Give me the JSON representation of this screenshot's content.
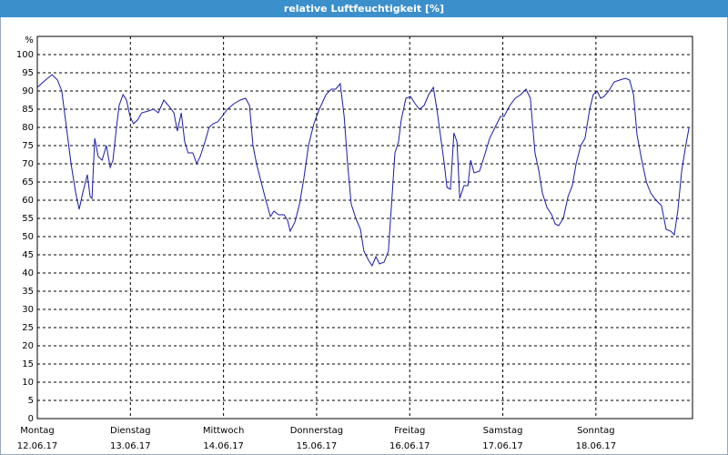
{
  "chart_data": {
    "type": "line",
    "title": "relative Luftfeuchtigkeit [%]",
    "y_label": "%",
    "x": [
      0,
      2.1,
      3.8,
      5.2,
      6.3,
      7.5,
      8.7,
      9.9,
      10.8,
      11.7,
      12.9,
      13.6,
      14.1,
      14.8,
      15.7,
      16.7,
      17.8,
      18.8,
      19.5,
      20.4,
      21.1,
      22.1,
      23.0,
      23.9,
      24.8,
      25.8,
      26.9,
      28.6,
      30.0,
      31.2,
      32.6,
      34.2,
      35.2,
      36.1,
      37.1,
      38.0,
      38.9,
      40.1,
      41.1,
      42.0,
      43.2,
      44.3,
      45.3,
      46.5,
      47.6,
      49.0,
      50.7,
      52.3,
      53.7,
      54.7,
      55.6,
      56.5,
      57.7,
      58.9,
      60.1,
      61.0,
      62.2,
      63.6,
      64.5,
      65.2,
      66.4,
      67.6,
      68.7,
      69.9,
      71.3,
      72.7,
      74.4,
      75.8,
      76.9,
      78.1,
      79.1,
      80.0,
      80.9,
      82.1,
      83.3,
      84.2,
      85.4,
      86.3,
      87.3,
      88.2,
      89.4,
      90.5,
      91.5,
      92.2,
      93.1,
      93.8,
      95.0,
      96.2,
      97.4,
      98.5,
      99.7,
      100.9,
      102.1,
      103.0,
      103.9,
      104.9,
      105.6,
      106.5,
      107.4,
      108.2,
      108.9,
      110.0,
      111.0,
      111.7,
      112.6,
      114.0,
      115.2,
      116.6,
      118.0,
      119.4,
      120.3,
      121.8,
      123.2,
      124.6,
      126.0,
      127.1,
      128.3,
      129.3,
      130.2,
      131.4,
      132.6,
      133.5,
      134.4,
      135.6,
      136.8,
      137.9,
      138.9,
      140.1,
      141.2,
      142.4,
      143.3,
      144.3,
      145.2,
      146.1,
      147.3,
      148.7,
      150.1,
      151.6,
      152.7,
      153.7,
      154.6,
      155.8,
      157.0,
      158.1,
      159.5,
      160.9,
      162.1,
      163.3,
      164.2,
      165.1,
      166.1,
      167.0,
      168.0
    ],
    "values": [
      91,
      93,
      94.5,
      93,
      90,
      80,
      70,
      62,
      57.5,
      62,
      67,
      61,
      60.5,
      77,
      72,
      71,
      75,
      69,
      71,
      80,
      86,
      89,
      87.5,
      83,
      81,
      82,
      84,
      84.5,
      85,
      84,
      87.5,
      85.5,
      84,
      79,
      84,
      76,
      73,
      73,
      70,
      72,
      76,
      80,
      81,
      81.5,
      83,
      85,
      86.5,
      87.5,
      88,
      86,
      75,
      70,
      65,
      60,
      55.5,
      57,
      56,
      56,
      54.5,
      51.5,
      54,
      59,
      66,
      75,
      81,
      85,
      89,
      90.5,
      90.5,
      92,
      83,
      70,
      59,
      55,
      52,
      46,
      43.5,
      42,
      44.5,
      42.5,
      43,
      46,
      62,
      73,
      76,
      82,
      88,
      88.5,
      86.5,
      85,
      86,
      89,
      91,
      85,
      78,
      70,
      63.5,
      63,
      78.5,
      76,
      60.5,
      64,
      64,
      71,
      67.5,
      68,
      72,
      77,
      80,
      83,
      83,
      86,
      88,
      89,
      90.5,
      88,
      73,
      68,
      62,
      58,
      56,
      53.5,
      53,
      55,
      61,
      64,
      70,
      75,
      77,
      85,
      89,
      90,
      88,
      88.5,
      90,
      92.5,
      93,
      93.5,
      93,
      89,
      78,
      71,
      65,
      62,
      60,
      58.5,
      52,
      51.5,
      50.5,
      57,
      68,
      74,
      80
    ],
    "color": "#1a1aa8",
    "xlim": [
      0,
      168.9
    ],
    "xticks": [
      {
        "value": 0,
        "label": "Montag"
      },
      {
        "value": 24,
        "label": "Dienstag"
      },
      {
        "value": 48,
        "label": "Mittwoch"
      },
      {
        "value": 72,
        "label": "Donnerstag"
      },
      {
        "value": 96,
        "label": "Freitag"
      },
      {
        "value": 120,
        "label": "Samstag"
      },
      {
        "value": 144,
        "label": "Sonntag"
      }
    ],
    "xtick_dates": [
      "12.06.17",
      "13.06.17",
      "14.06.17",
      "15.06.17",
      "16.06.17",
      "17.06.17",
      "18.06.17"
    ],
    "ylim": [
      0,
      105
    ],
    "yticks": [
      0,
      5,
      10,
      15,
      20,
      25,
      30,
      35,
      40,
      45,
      50,
      55,
      60,
      65,
      70,
      75,
      80,
      85,
      90,
      95,
      100
    ],
    "grid": true
  }
}
